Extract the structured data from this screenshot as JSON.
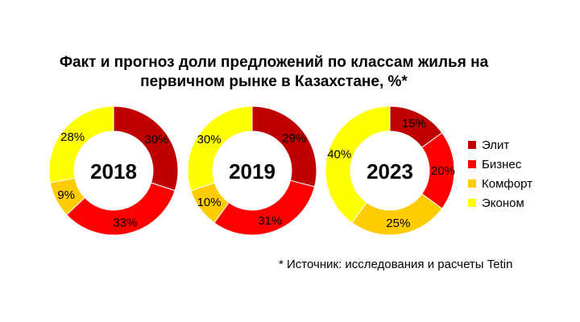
{
  "chart_data": {
    "type": "pie",
    "title_line1": "Факт и прогноз доли предложений по классам жилья на",
    "title_line2": "первичном рынке в Казахстане, %*",
    "categories": [
      "Элит",
      "Бизнес",
      "Комфорт",
      "Эконом"
    ],
    "colors": [
      "#c00000",
      "#ff0000",
      "#ffcc00",
      "#ffff00"
    ],
    "charts": [
      {
        "year": "2018",
        "values": [
          30,
          33,
          9,
          28
        ],
        "labels": [
          "30%",
          "33%",
          "9%",
          "28%"
        ]
      },
      {
        "year": "2019",
        "values": [
          29,
          31,
          10,
          30
        ],
        "labels": [
          "29%",
          "31%",
          "10%",
          "30%"
        ]
      },
      {
        "year": "2023",
        "values": [
          15,
          20,
          25,
          40
        ],
        "labels": [
          "15%",
          "20%",
          "25%",
          "40%"
        ]
      }
    ],
    "legend_position": "right",
    "source": "* Источник: исследования и расчеты Tetin"
  }
}
